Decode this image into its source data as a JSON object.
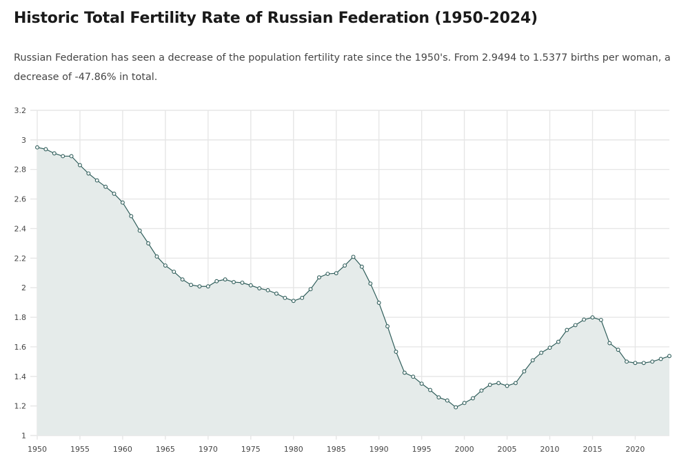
{
  "page": {
    "title": "Historic Total Fertility Rate of Russian Federation (1950-2024)",
    "description": "Russian Federation has seen a decrease of the population fertility rate since the 1950's. From 2.9494 to 1.5377 births per woman, a decrease of -47.86% in total."
  },
  "colors": {
    "line": "#2f5d5a",
    "area": "#e5ebea",
    "grid": "#e6e6e6"
  },
  "chart_data": {
    "type": "area",
    "title": "Historic Total Fertility Rate of Russian Federation (1950-2024)",
    "xlabel": "",
    "ylabel": "",
    "xlim": [
      1950,
      2024
    ],
    "ylim": [
      1,
      3.2
    ],
    "grid": true,
    "legend": "none",
    "x_ticks": [
      1950,
      1955,
      1960,
      1965,
      1970,
      1975,
      1980,
      1985,
      1990,
      1995,
      2000,
      2005,
      2010,
      2015,
      2020
    ],
    "y_ticks": [
      1,
      1.2,
      1.4,
      1.6,
      1.8,
      2,
      2.2,
      2.4,
      2.6,
      2.8,
      3,
      3.2
    ],
    "y_tick_labels": [
      "1",
      "1.2",
      "1.4",
      "1.6",
      "1.8",
      "2",
      "2.2",
      "2.4",
      "2.6",
      "2.8",
      "3",
      "3.2"
    ],
    "series": [
      {
        "name": "Total Fertility Rate",
        "x": [
          1950,
          1951,
          1952,
          1953,
          1954,
          1955,
          1956,
          1957,
          1958,
          1959,
          1960,
          1961,
          1962,
          1963,
          1964,
          1965,
          1966,
          1967,
          1968,
          1969,
          1970,
          1971,
          1972,
          1973,
          1974,
          1975,
          1976,
          1977,
          1978,
          1979,
          1980,
          1981,
          1982,
          1983,
          1984,
          1985,
          1986,
          1987,
          1988,
          1989,
          1990,
          1991,
          1992,
          1993,
          1994,
          1995,
          1996,
          1997,
          1998,
          1999,
          2000,
          2001,
          2002,
          2003,
          2004,
          2005,
          2006,
          2007,
          2008,
          2009,
          2010,
          2011,
          2012,
          2013,
          2014,
          2015,
          2016,
          2017,
          2018,
          2019,
          2020,
          2021,
          2022,
          2023,
          2024
        ],
        "values": [
          2.9494,
          2.937,
          2.909,
          2.89,
          2.89,
          2.829,
          2.773,
          2.726,
          2.683,
          2.636,
          2.576,
          2.484,
          2.386,
          2.3,
          2.211,
          2.15,
          2.108,
          2.056,
          2.019,
          2.009,
          2.009,
          2.044,
          2.056,
          2.038,
          2.034,
          2.016,
          1.996,
          1.983,
          1.96,
          1.931,
          1.911,
          1.931,
          1.99,
          2.07,
          2.094,
          2.098,
          2.15,
          2.209,
          2.142,
          2.028,
          1.898,
          1.739,
          1.567,
          1.425,
          1.398,
          1.351,
          1.308,
          1.258,
          1.237,
          1.191,
          1.22,
          1.252,
          1.304,
          1.343,
          1.355,
          1.336,
          1.355,
          1.434,
          1.509,
          1.56,
          1.594,
          1.634,
          1.714,
          1.747,
          1.784,
          1.799,
          1.782,
          1.625,
          1.58,
          1.5,
          1.491,
          1.491,
          1.5,
          1.518,
          1.5377
        ]
      }
    ]
  }
}
